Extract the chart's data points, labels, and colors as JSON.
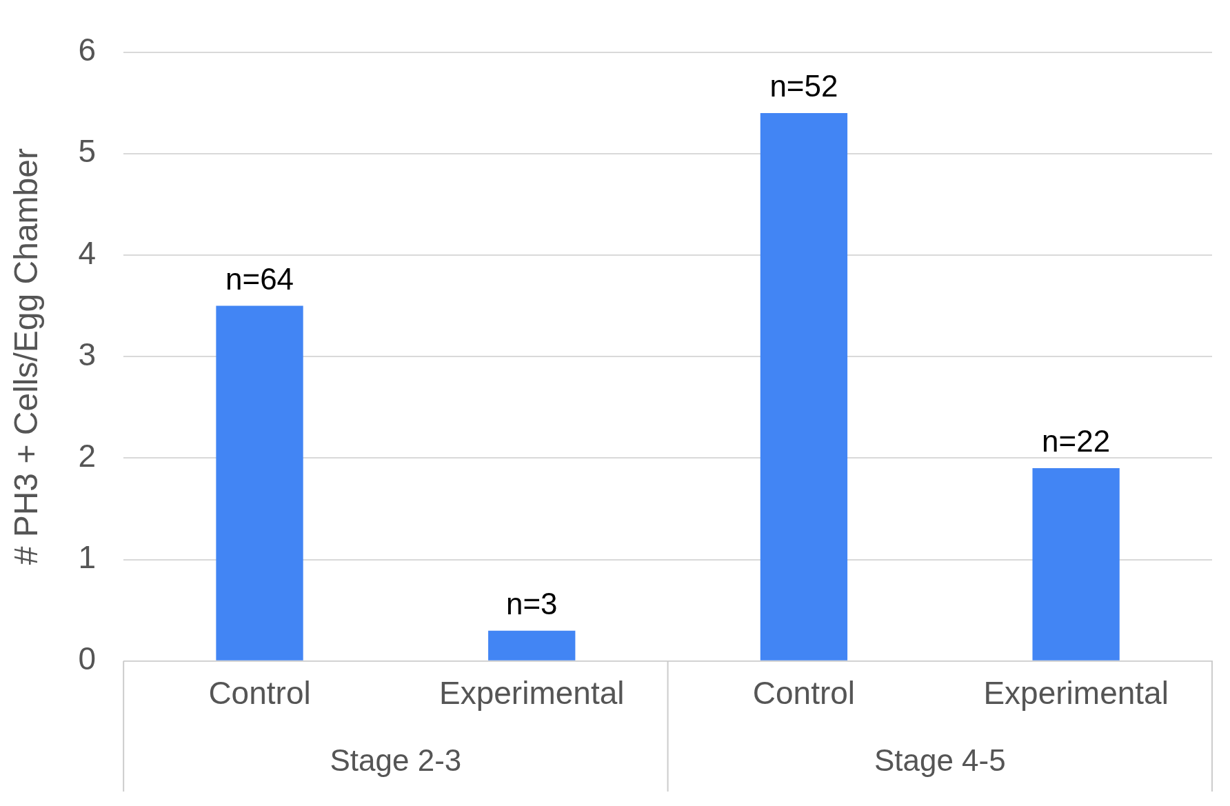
{
  "chart_data": {
    "type": "bar",
    "ylabel": "# PH3 + Cells/Egg Chamber",
    "categories": [
      "Control",
      "Experimental",
      "Control",
      "Experimental"
    ],
    "values": [
      3.5,
      0.3,
      5.4,
      1.9
    ],
    "color": "#4285f4",
    "ylim": [
      0,
      6
    ],
    "yticks": [
      0,
      1,
      2,
      3,
      4,
      5,
      6
    ],
    "grid": "y",
    "annotations": [
      "Stage 2-3",
      "Stage 4-5",
      "n=64",
      "n=3",
      "n=52",
      "n=22"
    ]
  }
}
